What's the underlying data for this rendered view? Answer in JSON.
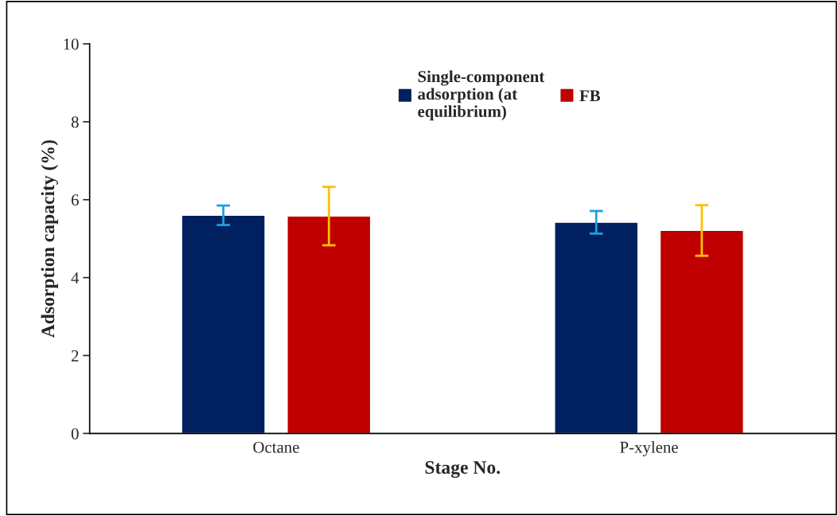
{
  "chart_data": {
    "type": "bar",
    "xlabel": "Stage No.",
    "ylabel": "Adsorption capacity (%)",
    "categories": [
      "Octane",
      "P-xylene"
    ],
    "series": [
      {
        "name": "Single-component\nadsorption (at\nequilibrium)",
        "color": "#002060",
        "values": [
          5.6,
          5.42
        ],
        "errors": [
          0.25,
          0.29
        ]
      },
      {
        "name": "FB",
        "color": "#c00000",
        "values": [
          5.58,
          5.21
        ],
        "errors": [
          0.75,
          0.65
        ]
      }
    ],
    "ylim": [
      0,
      10
    ],
    "yticks": [
      0,
      2,
      4,
      6,
      8,
      10
    ],
    "grid": false,
    "legend": "top"
  }
}
